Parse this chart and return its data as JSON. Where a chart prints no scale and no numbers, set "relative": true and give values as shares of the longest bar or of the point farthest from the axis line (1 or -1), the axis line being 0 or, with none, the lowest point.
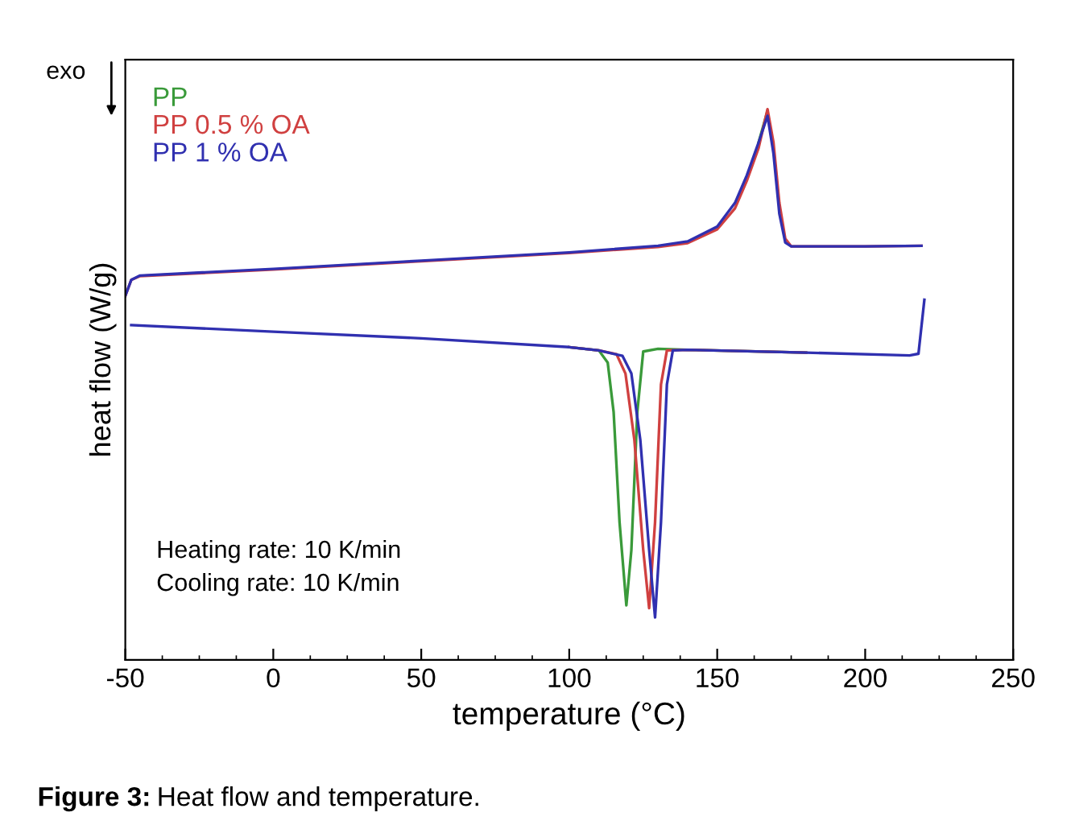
{
  "chart_data": {
    "type": "line",
    "relative": true,
    "xlabel": "temperature (°C)",
    "ylabel": "heat flow (W/g)",
    "xlim": [
      -50,
      250
    ],
    "xticks": [
      -50,
      0,
      50,
      100,
      150,
      200,
      250
    ],
    "grid": false,
    "legend": "top left",
    "marker": "none",
    "line_style": "solid",
    "annotations": [
      "exo",
      "Heating rate: 10 K/min",
      "Cooling rate: 10 K/min",
      "Figure 3:",
      "Heat flow and temperature."
    ],
    "series": [
      {
        "name": "PP",
        "color": "#3a9a3a",
        "x": [
          164,
          167
        ],
        "values": [
          0.94,
          0.997
        ]
      },
      {
        "name": "PP 0.5 % OA",
        "color": "#d04040",
        "x": [
          -50,
          -48,
          -45,
          0,
          50,
          100,
          130,
          140,
          150,
          156,
          160,
          164,
          167,
          169,
          171,
          173,
          175,
          200,
          219
        ],
        "values": [
          0.661,
          0.69,
          0.697,
          0.709,
          0.724,
          0.739,
          0.75,
          0.757,
          0.782,
          0.82,
          0.87,
          0.93,
          1.0,
          0.94,
          0.83,
          0.765,
          0.751,
          0.751,
          0.752
        ]
      },
      {
        "name": "PP 1 % OA",
        "color": "#3030b0",
        "x": [
          -50,
          -48,
          -45,
          0,
          50,
          100,
          130,
          140,
          150,
          156,
          160,
          164,
          167,
          169,
          171,
          173,
          175,
          200,
          219
        ],
        "values": [
          0.661,
          0.69,
          0.698,
          0.71,
          0.725,
          0.74,
          0.752,
          0.76,
          0.787,
          0.83,
          0.88,
          0.94,
          0.988,
          0.92,
          0.81,
          0.758,
          0.751,
          0.751,
          0.752
        ]
      },
      {
        "color": "#3a9a3a",
        "x": [
          100,
          110,
          113,
          115,
          117,
          119.3,
          121,
          123,
          125,
          130,
          140,
          180
        ],
        "values": [
          0.568,
          0.562,
          0.54,
          0.45,
          0.25,
          0.099,
          0.2,
          0.45,
          0.56,
          0.565,
          0.563,
          0.558
        ]
      },
      {
        "color": "#d04040",
        "x": [
          100,
          110,
          116,
          119,
          122,
          125,
          127,
          129,
          131,
          133,
          140,
          180
        ],
        "values": [
          0.568,
          0.562,
          0.555,
          0.52,
          0.4,
          0.2,
          0.094,
          0.25,
          0.5,
          0.562,
          0.563,
          0.558
        ]
      },
      {
        "color": "#3030b0",
        "x": [
          -48,
          0,
          50,
          100,
          110,
          118,
          121,
          124,
          127,
          129,
          131,
          133,
          135,
          140,
          180,
          215,
          218,
          220
        ],
        "values": [
          0.608,
          0.596,
          0.584,
          0.568,
          0.562,
          0.552,
          0.52,
          0.4,
          0.2,
          0.077,
          0.25,
          0.5,
          0.562,
          0.563,
          0.558,
          0.553,
          0.556,
          0.654
        ]
      }
    ]
  }
}
